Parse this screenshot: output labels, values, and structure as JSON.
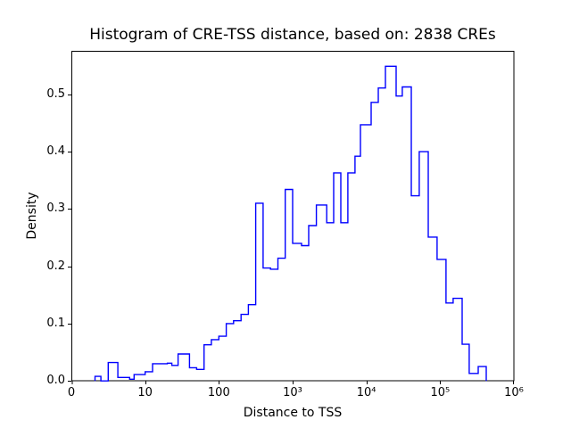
{
  "figure": {
    "title": "Histogram of CRE-TSS distance, based on: 2838 CREs",
    "xlabel": "Distance to TSS",
    "ylabel": "Density"
  },
  "chart_data": {
    "type": "histogram",
    "histtype": "step",
    "sample_count": 2838,
    "line_color": "#0000ff",
    "axis_color": "#000000",
    "background_color": "#ffffff",
    "x_scale": "symlog",
    "x_linear_threshold": 10,
    "x_axis_range": [
      0,
      1000000
    ],
    "y_axis_range": [
      0,
      0.575
    ],
    "grid": false,
    "legend": false,
    "x_ticks": [
      {
        "v": 0,
        "label": "0"
      },
      {
        "v": 10,
        "label": "10"
      },
      {
        "v": 100,
        "label": "100"
      },
      {
        "v": 1000,
        "label": "10³"
      },
      {
        "v": 10000,
        "label": "10⁴"
      },
      {
        "v": 100000,
        "label": "10⁵"
      },
      {
        "v": 1000000,
        "label": "10⁶"
      }
    ],
    "y_ticks": [
      {
        "v": 0.0,
        "label": "0.0"
      },
      {
        "v": 0.1,
        "label": "0.1"
      },
      {
        "v": 0.2,
        "label": "0.2"
      },
      {
        "v": 0.3,
        "label": "0.3"
      },
      {
        "v": 0.4,
        "label": "0.4"
      },
      {
        "v": 0.5,
        "label": "0.5"
      }
    ],
    "bars_format": [
      "bin_start",
      "bin_end",
      "density"
    ],
    "bars": [
      [
        3.2,
        4.0,
        0.008
      ],
      [
        5.0,
        6.3,
        0.032
      ],
      [
        6.3,
        7.9,
        0.006
      ],
      [
        7.9,
        8.5,
        0.003
      ],
      [
        8.5,
        10,
        0.011
      ],
      [
        10,
        12.6,
        0.016
      ],
      [
        12.6,
        20,
        0.03
      ],
      [
        20,
        23,
        0.031
      ],
      [
        23,
        28,
        0.027
      ],
      [
        28,
        40,
        0.047
      ],
      [
        40,
        50,
        0.023
      ],
      [
        50,
        63,
        0.02
      ],
      [
        63,
        79,
        0.063
      ],
      [
        79,
        100,
        0.072
      ],
      [
        100,
        126,
        0.078
      ],
      [
        126,
        158,
        0.1
      ],
      [
        158,
        200,
        0.105
      ],
      [
        200,
        251,
        0.116
      ],
      [
        251,
        316,
        0.133
      ],
      [
        316,
        398,
        0.31
      ],
      [
        398,
        501,
        0.197
      ],
      [
        501,
        631,
        0.195
      ],
      [
        631,
        794,
        0.214
      ],
      [
        794,
        1000,
        0.334
      ],
      [
        1000,
        1320,
        0.24
      ],
      [
        1320,
        1650,
        0.236
      ],
      [
        1650,
        2100,
        0.271
      ],
      [
        2100,
        2900,
        0.307
      ],
      [
        2900,
        3600,
        0.276
      ],
      [
        3600,
        4500,
        0.363
      ],
      [
        4500,
        5600,
        0.276
      ],
      [
        5600,
        7000,
        0.363
      ],
      [
        7000,
        8300,
        0.392
      ],
      [
        8300,
        11600,
        0.447
      ],
      [
        11600,
        14500,
        0.486
      ],
      [
        14500,
        18100,
        0.511
      ],
      [
        18100,
        25300,
        0.549
      ],
      [
        25300,
        30700,
        0.497
      ],
      [
        30700,
        40600,
        0.513
      ],
      [
        40600,
        52100,
        0.323
      ],
      [
        52100,
        68900,
        0.4
      ],
      [
        68900,
        91000,
        0.251
      ],
      [
        91000,
        120000,
        0.212
      ],
      [
        120000,
        150000,
        0.136
      ],
      [
        150000,
        199000,
        0.144
      ],
      [
        199000,
        248000,
        0.064
      ],
      [
        248000,
        328000,
        0.013
      ],
      [
        328000,
        422000,
        0.025
      ]
    ]
  }
}
